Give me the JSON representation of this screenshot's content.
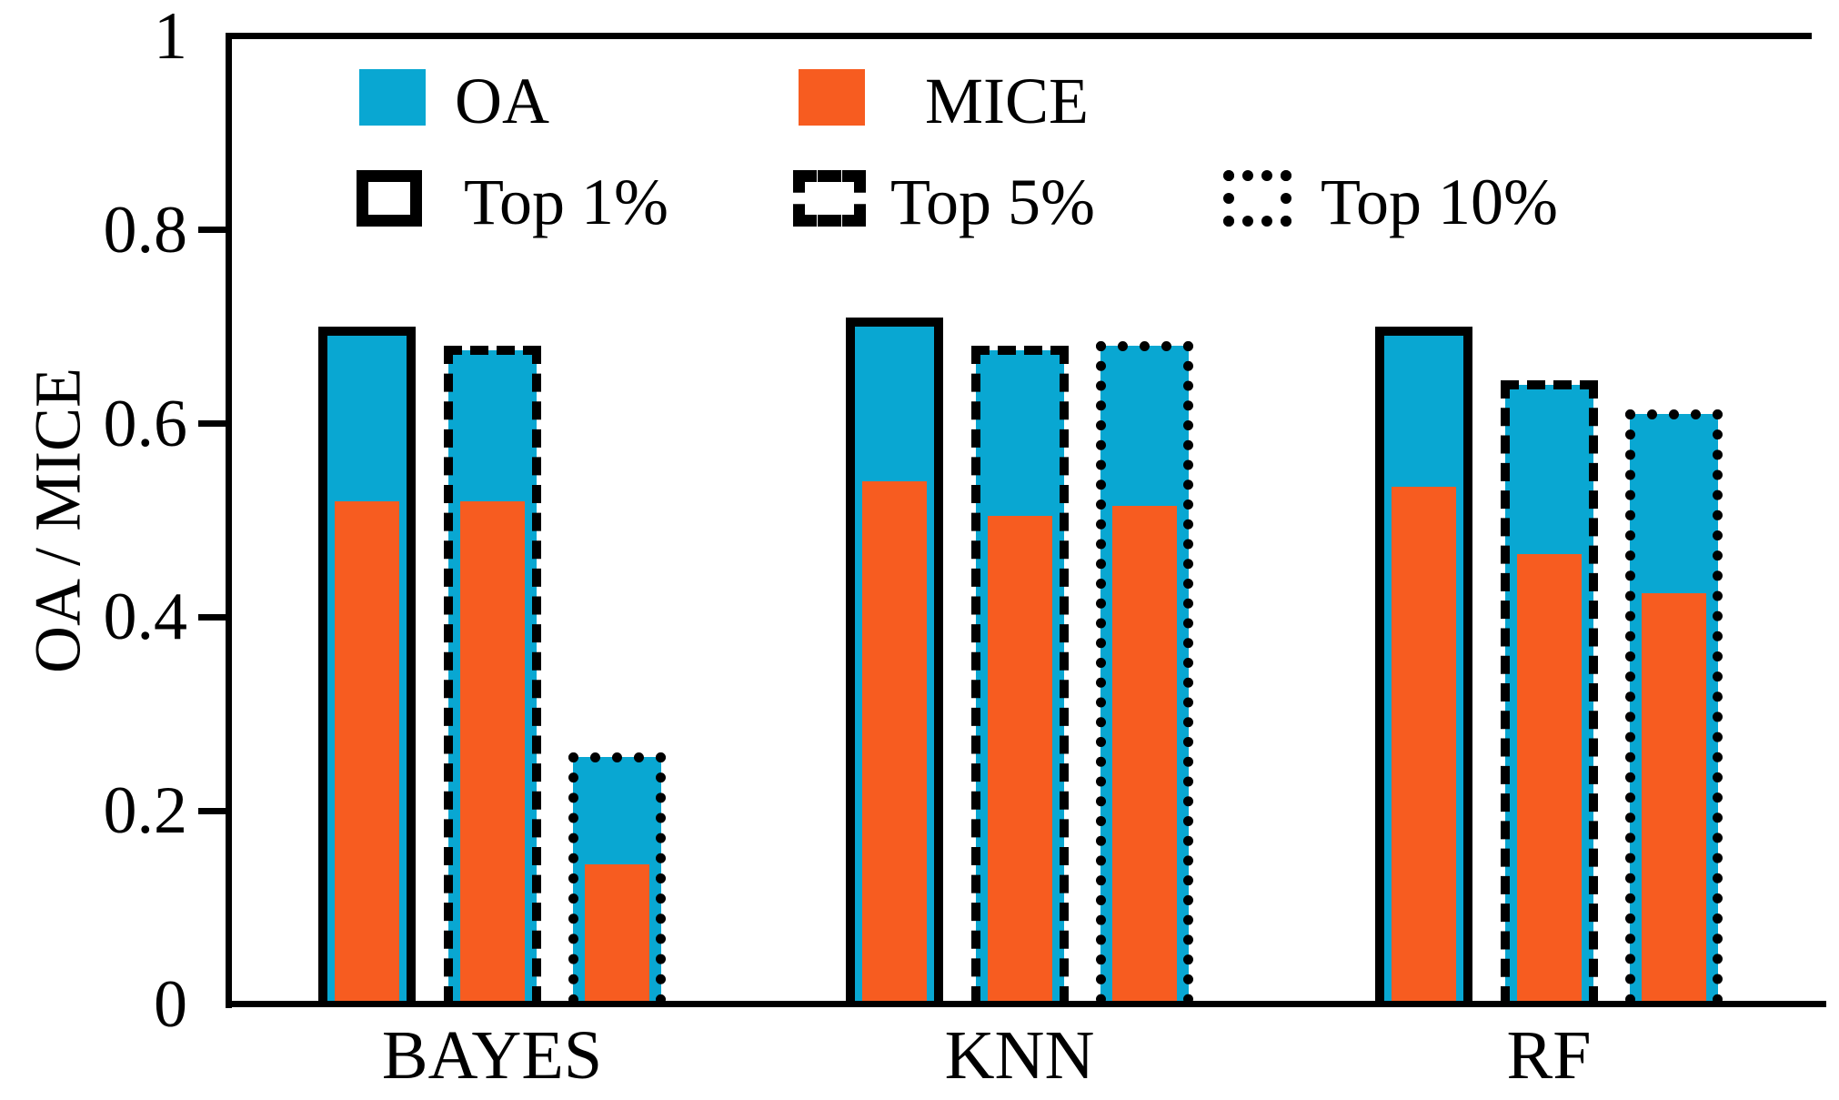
{
  "chart_data": {
    "type": "bar",
    "title": "",
    "xlabel": "",
    "ylabel": "OA / MICE",
    "ylim": [
      0,
      1
    ],
    "ytick_values": [
      0,
      0.2,
      0.4,
      0.6,
      0.8,
      1
    ],
    "ytick_labels": [
      "0",
      "0.2",
      "0.4",
      "0.6",
      "0.8",
      "1"
    ],
    "grid": false,
    "frame": "left-top-bottom",
    "legend_position": "inside-top-left",
    "categories": [
      "BAYES",
      "KNN",
      "RF"
    ],
    "variants": [
      {
        "label": "Top 1%",
        "outline": "solid"
      },
      {
        "label": "Top 5%",
        "outline": "dashed"
      },
      {
        "label": "Top 10%",
        "outline": "dotted"
      }
    ],
    "series": [
      {
        "name": "OA",
        "color": "#09A7D2",
        "values": [
          [
            0.7,
            0.68,
            0.26
          ],
          [
            0.71,
            0.68,
            0.685
          ],
          [
            0.7,
            0.645,
            0.615
          ]
        ]
      },
      {
        "name": "MICE",
        "color": "#F75C20",
        "values": [
          [
            0.52,
            0.52,
            0.145
          ],
          [
            0.54,
            0.505,
            0.515
          ],
          [
            0.535,
            0.465,
            0.425
          ]
        ]
      }
    ]
  },
  "legend": {
    "oa": "OA",
    "mice": "MICE",
    "top1": "Top 1%",
    "top5": "Top 5%",
    "top10": "Top 10%"
  },
  "colors": {
    "oa_blue": "#09A7D2",
    "mice_orange": "#F75C20",
    "axis_black": "#000000",
    "background": "#FFFFFF"
  }
}
